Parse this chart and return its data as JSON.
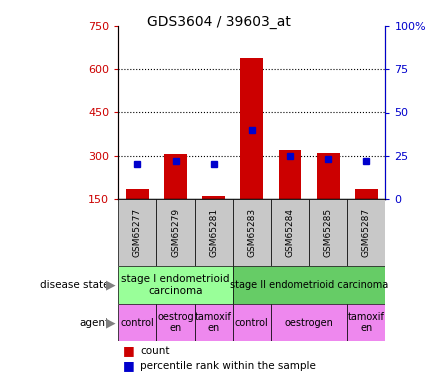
{
  "title": "GDS3604 / 39603_at",
  "samples": [
    "GSM65277",
    "GSM65279",
    "GSM65281",
    "GSM65283",
    "GSM65284",
    "GSM65285",
    "GSM65287"
  ],
  "count_values": [
    185,
    305,
    158,
    640,
    320,
    308,
    185
  ],
  "percentile_values": [
    20,
    22,
    20,
    40,
    25,
    23,
    22
  ],
  "ymin": 150,
  "ymax": 750,
  "yticks": [
    150,
    300,
    450,
    600,
    750
  ],
  "ytick_labels": [
    "150",
    "300",
    "450",
    "600",
    "750"
  ],
  "y2ticks": [
    0,
    25,
    50,
    75,
    100
  ],
  "y2tick_labels": [
    "0",
    "25",
    "50",
    "75",
    "100%"
  ],
  "bar_color": "#cc0000",
  "dot_color": "#0000cc",
  "grid_color": "#000000",
  "stage1_color": "#99ff99",
  "stage2_color": "#66cc66",
  "agent_color": "#ee88ee",
  "xlabel_bg": "#c8c8c8",
  "axis_left_color": "#cc0000",
  "axis_right_color": "#0000cc",
  "legend_count_color": "#cc0000",
  "legend_percentile_color": "#0000cc"
}
